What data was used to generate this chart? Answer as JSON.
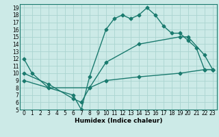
{
  "xlabel": "Humidex (Indice chaleur)",
  "bg_color": "#cceae7",
  "grid_color": "#aad4d0",
  "line_color": "#1a7a6e",
  "xlim": [
    -0.5,
    23.5
  ],
  "ylim": [
    5,
    19.5
  ],
  "yticks": [
    5,
    6,
    7,
    8,
    9,
    10,
    11,
    12,
    13,
    14,
    15,
    16,
    17,
    18,
    19
  ],
  "xticks": [
    0,
    1,
    2,
    3,
    4,
    5,
    6,
    7,
    8,
    9,
    10,
    11,
    12,
    13,
    14,
    15,
    16,
    17,
    18,
    19,
    20,
    21,
    22,
    23
  ],
  "curve1_x": [
    0,
    1,
    3,
    6,
    7,
    8,
    10,
    11,
    12,
    13,
    14,
    15,
    16,
    17,
    18,
    19,
    20,
    21,
    22,
    23
  ],
  "curve1_y": [
    12,
    10,
    8,
    7,
    5,
    9.5,
    16,
    17.5,
    18,
    17.5,
    18,
    19,
    18,
    16.5,
    15.5,
    15.5,
    14.5,
    13.5,
    10.5,
    10.5
  ],
  "curve2_x": [
    0,
    3,
    6,
    7,
    8,
    10,
    14,
    19,
    20,
    22,
    23
  ],
  "curve2_y": [
    10,
    8.5,
    6.5,
    6,
    8,
    11.5,
    14,
    15,
    15,
    12.5,
    10.5
  ],
  "curve3_x": [
    0,
    3,
    8,
    10,
    14,
    19,
    22,
    23
  ],
  "curve3_y": [
    9,
    8,
    8,
    9,
    9.5,
    10,
    10.5,
    10.5
  ],
  "xlabel_fontsize": 6.5,
  "tick_fontsize": 5.5,
  "linewidth": 1.0,
  "markersize": 2.5
}
